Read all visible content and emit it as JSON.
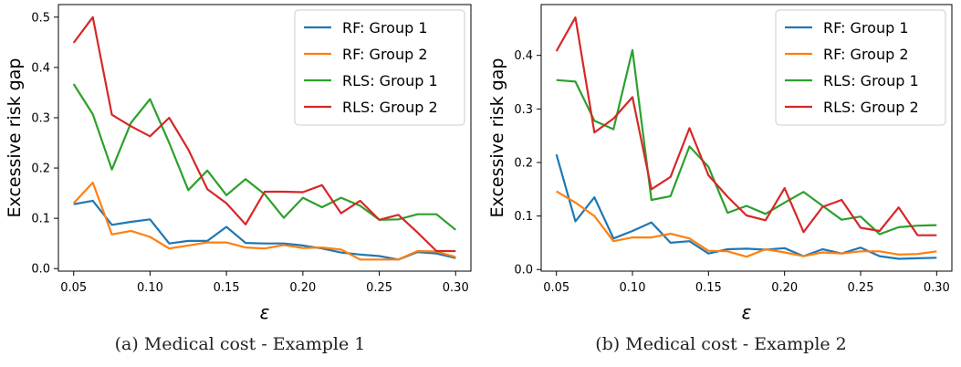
{
  "chart_data": [
    {
      "type": "line",
      "caption": "(a) Medical cost - Example 1",
      "xlabel": "ε",
      "ylabel": "Excessive risk gap",
      "xlim": [
        0.04,
        0.31
      ],
      "ylim": [
        -0.005,
        0.525
      ],
      "xticks": [
        "0.05",
        "0.10",
        "0.15",
        "0.20",
        "0.25",
        "0.30"
      ],
      "xtick_values": [
        0.05,
        0.1,
        0.15,
        0.2,
        0.25,
        0.3
      ],
      "yticks": [
        "0.0",
        "0.1",
        "0.2",
        "0.3",
        "0.4",
        "0.5"
      ],
      "ytick_values": [
        0.0,
        0.1,
        0.2,
        0.3,
        0.4,
        0.5
      ],
      "grid": false,
      "legend_position": "top-right",
      "x": [
        0.05,
        0.0625,
        0.075,
        0.0875,
        0.1,
        0.1125,
        0.125,
        0.1375,
        0.15,
        0.1625,
        0.175,
        0.1875,
        0.2,
        0.2125,
        0.225,
        0.2375,
        0.25,
        0.2625,
        0.275,
        0.2875,
        0.3
      ],
      "series": [
        {
          "name": "RF: Group 1",
          "color": "#1f77b4",
          "values": [
            0.128,
            0.135,
            0.087,
            0.093,
            0.098,
            0.05,
            0.055,
            0.055,
            0.083,
            0.051,
            0.05,
            0.05,
            0.046,
            0.04,
            0.032,
            0.028,
            0.025,
            0.018,
            0.033,
            0.03,
            0.021
          ]
        },
        {
          "name": "RF: Group 2",
          "color": "#ff7f0e",
          "values": [
            0.13,
            0.171,
            0.068,
            0.075,
            0.063,
            0.04,
            0.046,
            0.052,
            0.052,
            0.042,
            0.04,
            0.047,
            0.041,
            0.042,
            0.038,
            0.018,
            0.018,
            0.018,
            0.035,
            0.034,
            0.023
          ]
        },
        {
          "name": "RLS: Group 1",
          "color": "#2ca02c",
          "values": [
            0.367,
            0.307,
            0.197,
            0.29,
            0.337,
            0.25,
            0.156,
            0.195,
            0.146,
            0.178,
            0.148,
            0.101,
            0.141,
            0.122,
            0.141,
            0.125,
            0.097,
            0.098,
            0.108,
            0.108,
            0.077
          ]
        },
        {
          "name": "RLS: Group 2",
          "color": "#d62728",
          "values": [
            0.449,
            0.5,
            0.306,
            0.283,
            0.263,
            0.3,
            0.237,
            0.158,
            0.13,
            0.088,
            0.153,
            0.153,
            0.152,
            0.166,
            0.11,
            0.135,
            0.097,
            0.107,
            0.072,
            0.035,
            0.035
          ]
        }
      ]
    },
    {
      "type": "line",
      "caption": "(b) Medical cost - Example 2",
      "xlabel": "ε",
      "ylabel": "Excessive risk gap",
      "xlim": [
        0.04,
        0.31
      ],
      "ylim": [
        -0.003,
        0.495
      ],
      "xticks": [
        "0.05",
        "0.10",
        "0.15",
        "0.20",
        "0.25",
        "0.30"
      ],
      "xtick_values": [
        0.05,
        0.1,
        0.15,
        0.2,
        0.25,
        0.3
      ],
      "yticks": [
        "0.0",
        "0.1",
        "0.2",
        "0.3",
        "0.4"
      ],
      "ytick_values": [
        0.0,
        0.1,
        0.2,
        0.3,
        0.4
      ],
      "grid": false,
      "legend_position": "top-right",
      "x": [
        0.05,
        0.0625,
        0.075,
        0.0875,
        0.1,
        0.1125,
        0.125,
        0.1375,
        0.15,
        0.1625,
        0.175,
        0.1875,
        0.2,
        0.2125,
        0.225,
        0.2375,
        0.25,
        0.2625,
        0.275,
        0.2875,
        0.3
      ],
      "series": [
        {
          "name": "RF: Group 1",
          "color": "#1f77b4",
          "values": [
            0.215,
            0.09,
            0.135,
            0.058,
            0.072,
            0.088,
            0.05,
            0.053,
            0.03,
            0.038,
            0.039,
            0.037,
            0.04,
            0.025,
            0.038,
            0.03,
            0.041,
            0.025,
            0.02,
            0.021,
            0.022
          ]
        },
        {
          "name": "RF: Group 2",
          "color": "#ff7f0e",
          "values": [
            0.146,
            0.125,
            0.1,
            0.053,
            0.06,
            0.06,
            0.067,
            0.058,
            0.035,
            0.034,
            0.024,
            0.038,
            0.032,
            0.025,
            0.032,
            0.03,
            0.034,
            0.034,
            0.028,
            0.029,
            0.034
          ]
        },
        {
          "name": "RLS: Group 1",
          "color": "#2ca02c",
          "values": [
            0.354,
            0.351,
            0.278,
            0.262,
            0.41,
            0.13,
            0.137,
            0.23,
            0.192,
            0.106,
            0.119,
            0.104,
            0.125,
            0.145,
            0.119,
            0.093,
            0.099,
            0.066,
            0.079,
            0.082,
            0.083
          ]
        },
        {
          "name": "RLS: Group 2",
          "color": "#d62728",
          "values": [
            0.408,
            0.471,
            0.256,
            0.282,
            0.322,
            0.15,
            0.173,
            0.264,
            0.176,
            0.136,
            0.101,
            0.092,
            0.152,
            0.07,
            0.117,
            0.13,
            0.078,
            0.072,
            0.116,
            0.064,
            0.064
          ]
        }
      ]
    }
  ]
}
